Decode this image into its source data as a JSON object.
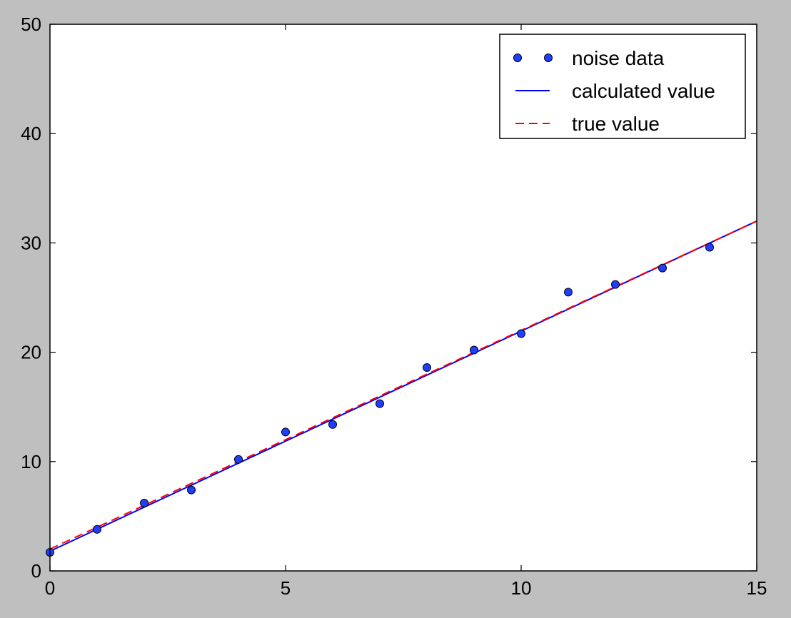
{
  "chart_data": {
    "type": "line",
    "xlim": [
      0,
      15
    ],
    "ylim": [
      0,
      50
    ],
    "x_ticks": [
      "0",
      "5",
      "10",
      "15"
    ],
    "y_ticks": [
      "0",
      "10",
      "20",
      "30",
      "40",
      "50"
    ],
    "grid": false,
    "legend_position": "top-right",
    "series": [
      {
        "name": "noise data",
        "style": "markers",
        "color": "#1f3fff",
        "points": [
          [
            0,
            1.7
          ],
          [
            1,
            3.8
          ],
          [
            2,
            6.2
          ],
          [
            3,
            7.4
          ],
          [
            4,
            10.2
          ],
          [
            5,
            12.7
          ],
          [
            6,
            13.4
          ],
          [
            7,
            15.3
          ],
          [
            8,
            18.6
          ],
          [
            9,
            20.2
          ],
          [
            10,
            21.7
          ],
          [
            11,
            25.5
          ],
          [
            12,
            26.2
          ],
          [
            13,
            27.7
          ],
          [
            14,
            29.6
          ]
        ]
      },
      {
        "name": "calculated value",
        "style": "solid",
        "color": "#0000ff",
        "points": [
          [
            0,
            1.8
          ],
          [
            15,
            32.0
          ]
        ]
      },
      {
        "name": "true value",
        "style": "dashed",
        "color": "#ff0000",
        "points": [
          [
            0,
            2.0
          ],
          [
            15,
            32.0
          ]
        ]
      }
    ]
  }
}
